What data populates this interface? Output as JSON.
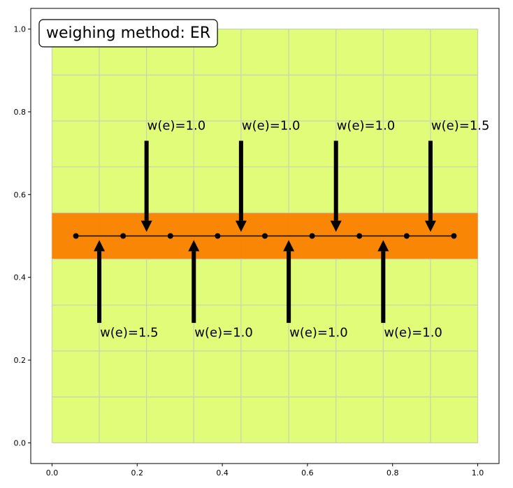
{
  "chart_data": {
    "type": "scatter",
    "title": "weighing method: ER",
    "xlabel": "",
    "ylabel": "",
    "xlim": [
      -0.05,
      1.05
    ],
    "ylim": [
      -0.05,
      1.05
    ],
    "xticks": [
      "0.0",
      "0.2",
      "0.4",
      "0.6",
      "0.8",
      "1.0"
    ],
    "yticks": [
      "0.0",
      "0.2",
      "0.4",
      "0.6",
      "0.8",
      "1.0"
    ],
    "background_region": {
      "x": [
        0.0,
        1.0
      ],
      "y": [
        0.0,
        1.0
      ],
      "color": "#e1fc78"
    },
    "grid": {
      "x": [
        0.0,
        0.111,
        0.222,
        0.333,
        0.444,
        0.556,
        0.667,
        0.778,
        0.889,
        1.0
      ],
      "y": [
        0.0,
        0.111,
        0.222,
        0.333,
        0.444,
        0.556,
        0.667,
        0.778,
        0.889,
        1.0
      ],
      "color": "#c8d2b4"
    },
    "band": {
      "y": [
        0.445,
        0.555
      ],
      "x": [
        0.0,
        1.0
      ],
      "color": "#fb8000"
    },
    "line": {
      "y": 0.5,
      "x": [
        0.056,
        0.944
      ],
      "color": "#000000"
    },
    "nodes": {
      "x": [
        0.056,
        0.167,
        0.278,
        0.389,
        0.5,
        0.611,
        0.722,
        0.833,
        0.944
      ],
      "y": 0.5
    },
    "arrows_down": [
      {
        "x": 0.222,
        "y_from": 0.73,
        "y_to": 0.51,
        "label": "w(e)=1.0",
        "label_y": 0.75
      },
      {
        "x": 0.444,
        "y_from": 0.73,
        "y_to": 0.51,
        "label": "w(e)=1.0",
        "label_y": 0.75
      },
      {
        "x": 0.667,
        "y_from": 0.73,
        "y_to": 0.51,
        "label": "w(e)=1.0",
        "label_y": 0.75
      },
      {
        "x": 0.889,
        "y_from": 0.73,
        "y_to": 0.51,
        "label": "w(e)=1.5",
        "label_y": 0.75
      }
    ],
    "arrows_up": [
      {
        "x": 0.111,
        "y_from": 0.29,
        "y_to": 0.49,
        "label": "w(e)=1.5",
        "label_y": 0.25
      },
      {
        "x": 0.333,
        "y_from": 0.29,
        "y_to": 0.49,
        "label": "w(e)=1.0",
        "label_y": 0.25
      },
      {
        "x": 0.556,
        "y_from": 0.29,
        "y_to": 0.49,
        "label": "w(e)=1.0",
        "label_y": 0.25
      },
      {
        "x": 0.778,
        "y_from": 0.29,
        "y_to": 0.49,
        "label": "w(e)=1.0",
        "label_y": 0.25
      }
    ],
    "title_box": "upper-left"
  }
}
